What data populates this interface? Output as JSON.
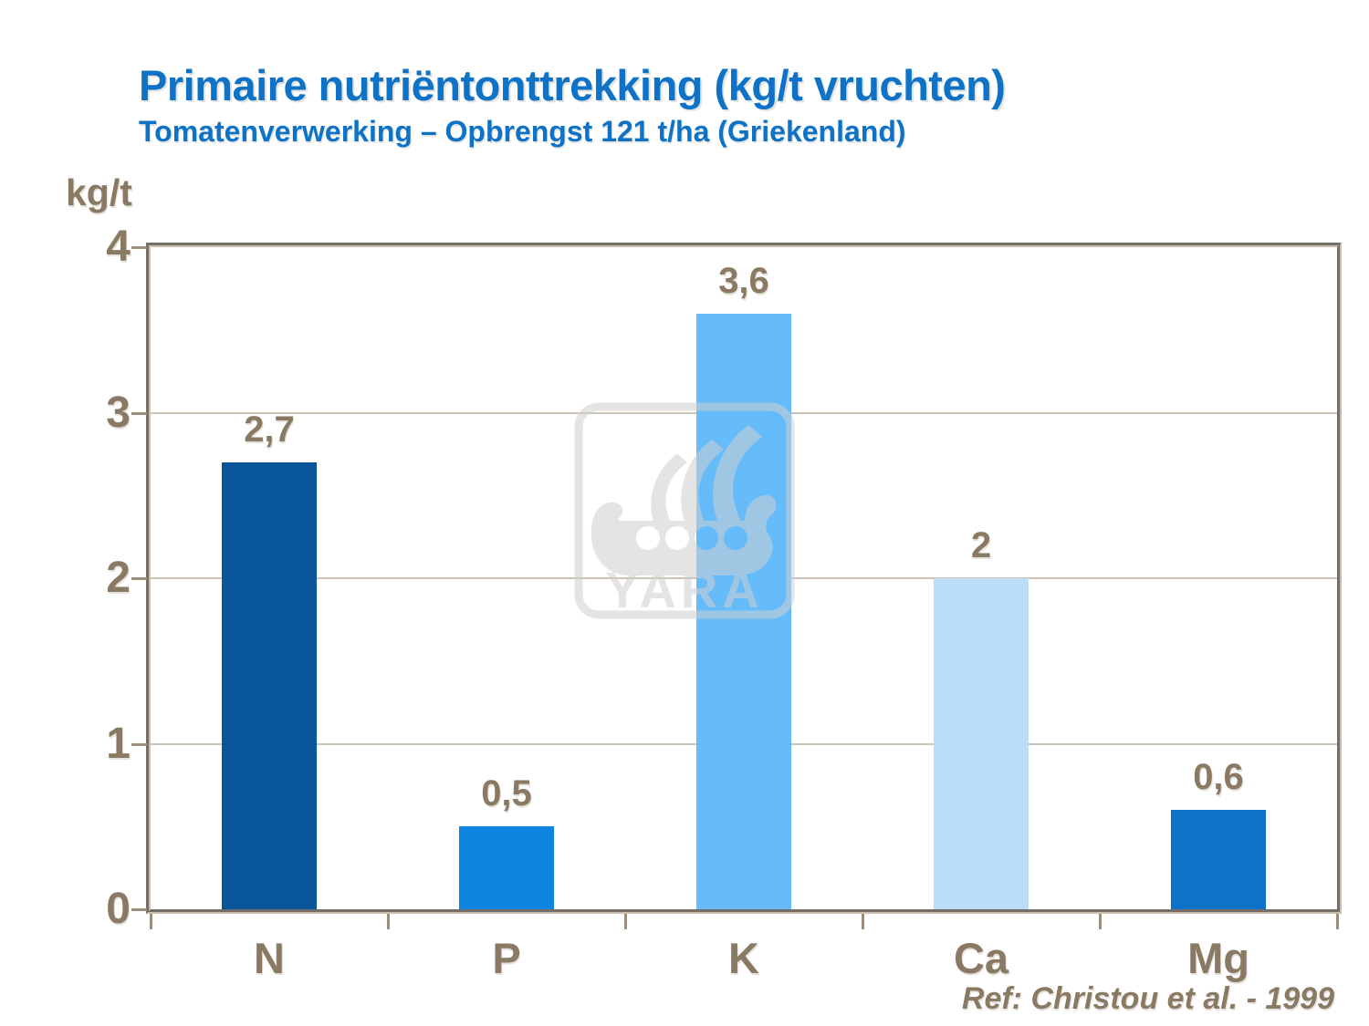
{
  "header": {
    "title": "Primaire nutriëntonttrekking (kg/t vruchten)",
    "subtitle": "Tomatenverwerking – Opbrengst 121 t/ha (Griekenland)"
  },
  "reference": "Ref: Christou et al. - 1999",
  "watermark": {
    "text": "YARA"
  },
  "colors": {
    "title_blue": "#0E72C6",
    "label_brown": "#8A7963",
    "frame_tan": "#C9BEB1",
    "gridline_tan": "#CDC3B6",
    "tick_tan": "#9C8D7D",
    "watermark_gray": "#CFCFCF"
  },
  "chart_data": {
    "type": "bar",
    "title": "Primaire nutriëntonttrekking (kg/t vruchten)",
    "subtitle": "Tomatenverwerking – Opbrengst 121 t/ha (Griekenland)",
    "categories": [
      "N",
      "P",
      "K",
      "Ca",
      "Mg"
    ],
    "values": [
      2.7,
      0.5,
      3.6,
      2,
      0.6
    ],
    "value_labels": [
      "2,7",
      "0,5",
      "3,6",
      "2",
      "0,6"
    ],
    "bar_colors": [
      "#0A569B",
      "#0D85E0",
      "#66BBFA",
      "#BCDDF8",
      "#0C73C8"
    ],
    "ylabel": "kg/t",
    "ylim": [
      0,
      4
    ],
    "yticks": [
      0,
      1,
      2,
      3,
      4
    ],
    "grid": "horizontal",
    "legend": "none"
  }
}
